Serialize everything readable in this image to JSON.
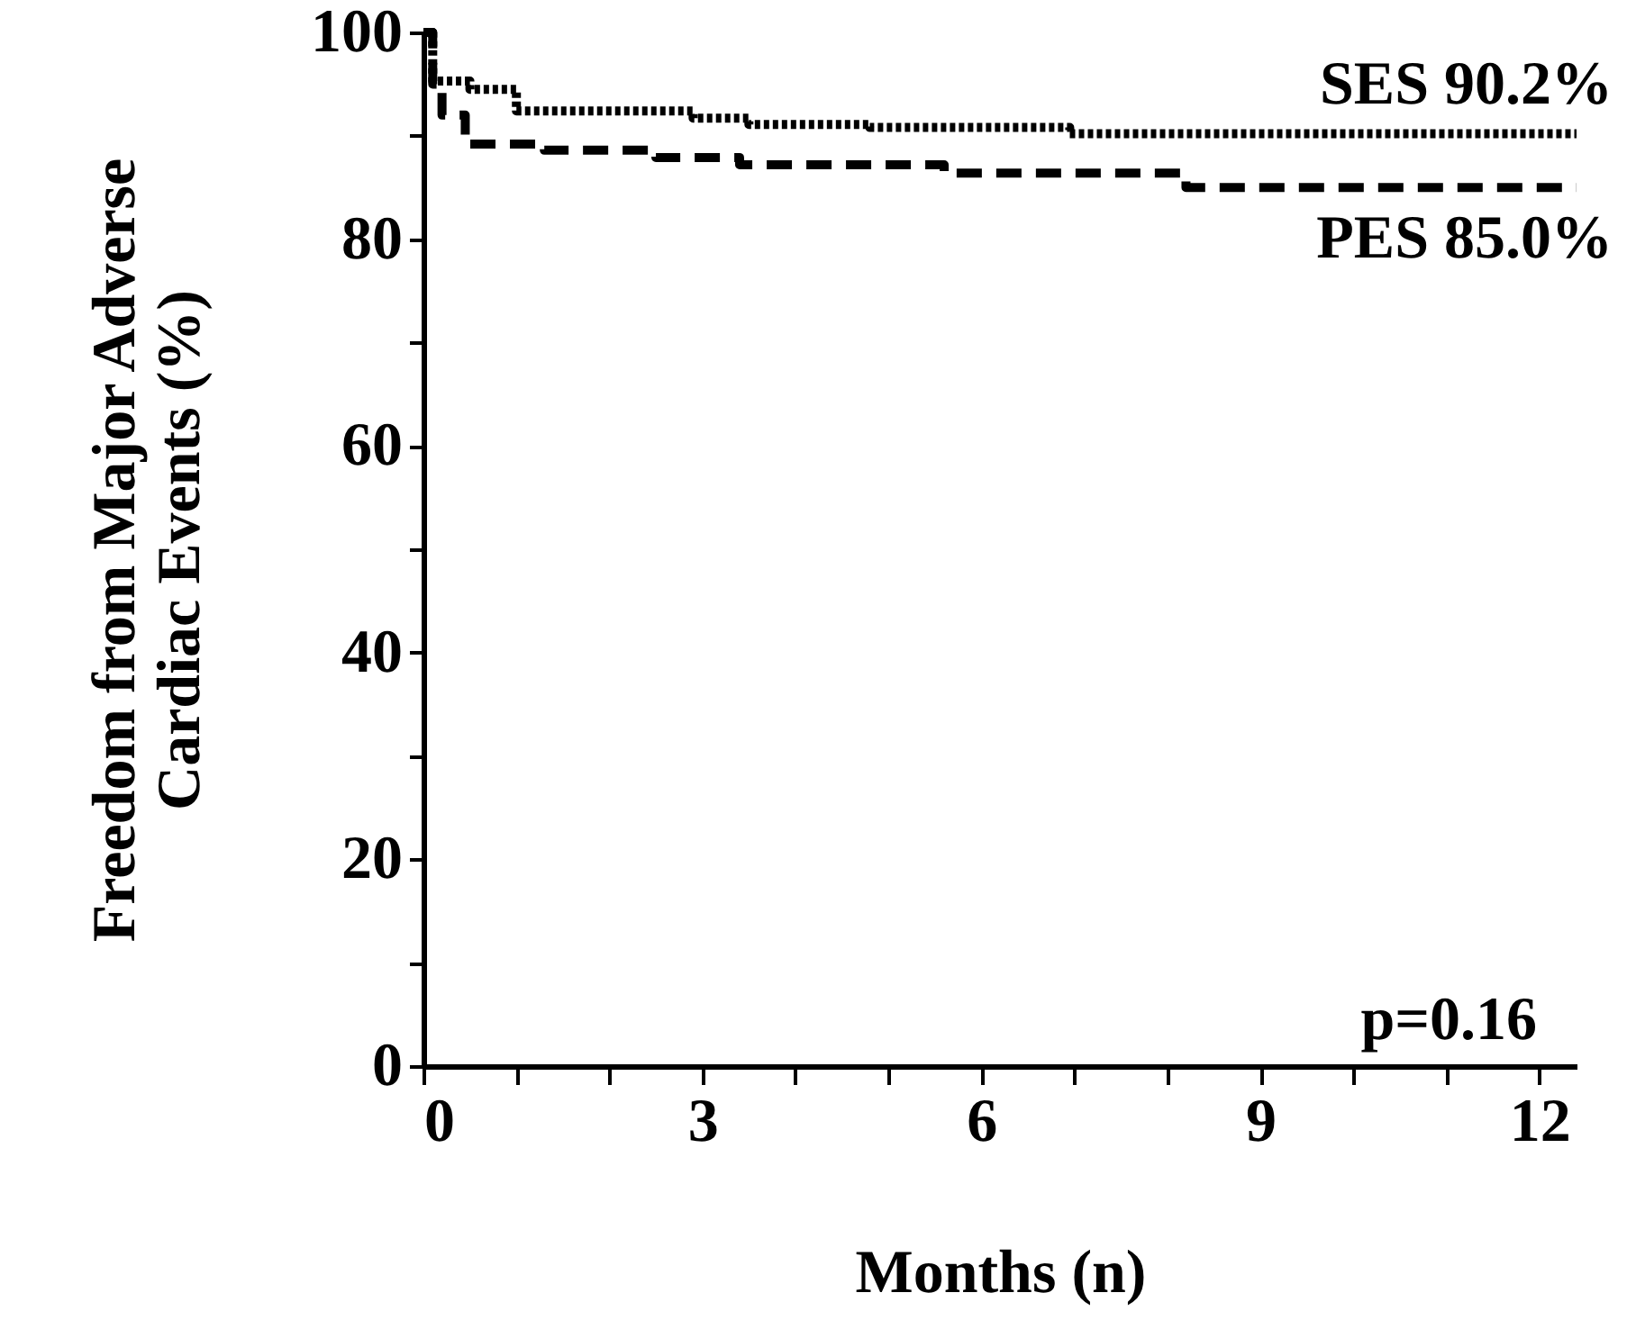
{
  "chart_data": {
    "type": "step",
    "xlabel": "Months (n)",
    "ylabel": "Freedom from Major Adverse\nCardiac Events (%)",
    "xlim": [
      0,
      12.4
    ],
    "xticks": [
      0,
      {
        "value": 1,
        "label": null
      },
      {
        "value": 2,
        "label": null
      },
      3,
      {
        "value": 4,
        "label": null
      },
      {
        "value": 5,
        "label": null
      },
      6,
      {
        "value": 7,
        "label": null
      },
      {
        "value": 8,
        "label": null
      },
      9,
      {
        "value": 10,
        "label": null
      },
      {
        "value": 11,
        "label": null
      },
      12
    ],
    "ylim": [
      0,
      100
    ],
    "yticks": [
      0,
      {
        "value": 10,
        "label": null
      },
      20,
      {
        "value": 30,
        "label": null
      },
      40,
      {
        "value": 50,
        "label": null
      },
      60,
      {
        "value": 70,
        "label": null
      },
      80,
      {
        "value": 90,
        "label": null
      },
      100
    ],
    "grid": false,
    "marker": "none",
    "series": [
      {
        "color": "#000000",
        "line_style": "dotted",
        "x": [
          0,
          0.1,
          0.5,
          1.0,
          2.9,
          3.5,
          4.8,
          6.95,
          12.4
        ],
        "values": [
          100,
          95.3,
          94.5,
          92.4,
          91.7,
          91.1,
          90.8,
          90.2,
          90.2
        ]
      },
      {
        "color": "#000000",
        "line_style": "dashed",
        "x": [
          0,
          0.1,
          0.2,
          0.45,
          1.3,
          2.5,
          3.4,
          5.6,
          8.2,
          12.4
        ],
        "values": [
          100,
          95,
          92,
          89.2,
          88.6,
          87.9,
          87.2,
          86.4,
          85.0,
          85.0
        ]
      }
    ],
    "annotations": [
      {
        "text": "SES 90.2%",
        "x": 12.4,
        "y": 90.2
      },
      {
        "text": "PES 85.0%",
        "x": 12.4,
        "y": 85.0
      },
      "p=0.16"
    ]
  }
}
